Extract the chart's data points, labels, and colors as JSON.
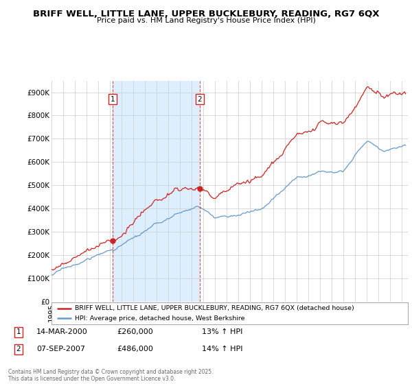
{
  "title": "BRIFF WELL, LITTLE LANE, UPPER BUCKLEBURY, READING, RG7 6QX",
  "subtitle": "Price paid vs. HM Land Registry's House Price Index (HPI)",
  "ylabel_ticks": [
    "£0",
    "£100K",
    "£200K",
    "£300K",
    "£400K",
    "£500K",
    "£600K",
    "£700K",
    "£800K",
    "£900K"
  ],
  "ytick_values": [
    0,
    100000,
    200000,
    300000,
    400000,
    500000,
    600000,
    700000,
    800000,
    900000
  ],
  "ylim": [
    0,
    950000
  ],
  "xlim_start": 1995.0,
  "xlim_end": 2025.5,
  "legend_line1": "BRIFF WELL, LITTLE LANE, UPPER BUCKLEBURY, READING, RG7 6QX (detached house)",
  "legend_line2": "HPI: Average price, detached house, West Berkshire",
  "sale1_date": "14-MAR-2000",
  "sale1_price": "£260,000",
  "sale1_hpi": "13% ↑ HPI",
  "sale1_x": 2000.21,
  "sale1_price_val": 260000,
  "sale2_date": "07-SEP-2007",
  "sale2_price": "£486,000",
  "sale2_hpi": "14% ↑ HPI",
  "sale2_x": 2007.69,
  "sale2_price_val": 486000,
  "footer": "Contains HM Land Registry data © Crown copyright and database right 2025.\nThis data is licensed under the Open Government Licence v3.0.",
  "line_color_red": "#cc2222",
  "line_color_blue": "#6699cc",
  "shade_color": "#ddeeff",
  "background_color": "#ffffff",
  "grid_color": "#cccccc",
  "marker_box_color": "#cc2222"
}
